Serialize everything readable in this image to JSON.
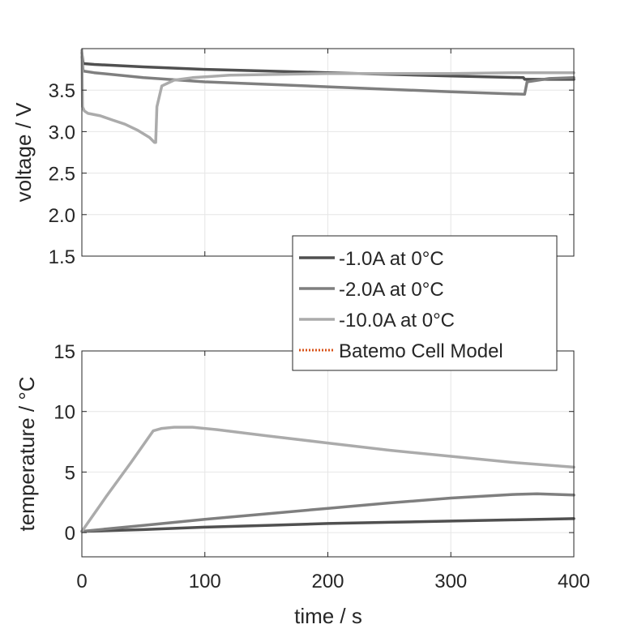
{
  "chart_data": [
    {
      "type": "line",
      "panel": "top",
      "title": "",
      "xlabel": "",
      "ylabel": "voltage / V",
      "xlim": [
        0,
        400
      ],
      "ylim": [
        1.5,
        4.0
      ],
      "xticks": [
        0,
        100,
        200,
        300,
        400
      ],
      "yticks": [
        1.5,
        2.0,
        2.5,
        3.0,
        3.5
      ],
      "ytick_labels": [
        "1.5",
        "2.0",
        "2.5",
        "3.0",
        "3.5"
      ],
      "show_x_tick_labels": false,
      "grid": true,
      "series": [
        {
          "name": "-1.0A at 0°C",
          "color": "#505050",
          "x": [
            0,
            1,
            10,
            50,
            100,
            150,
            200,
            250,
            300,
            359,
            360,
            380,
            400
          ],
          "y": [
            3.95,
            3.82,
            3.81,
            3.78,
            3.75,
            3.73,
            3.71,
            3.69,
            3.67,
            3.65,
            3.63,
            3.63,
            3.63
          ]
        },
        {
          "name": "-2.0A at 0°C",
          "color": "#7f7f7f",
          "x": [
            0,
            1,
            10,
            50,
            100,
            150,
            200,
            250,
            300,
            359,
            360,
            362,
            380,
            400
          ],
          "y": [
            3.9,
            3.73,
            3.71,
            3.65,
            3.6,
            3.57,
            3.54,
            3.51,
            3.48,
            3.45,
            3.45,
            3.6,
            3.64,
            3.65
          ]
        },
        {
          "name": "-10.0A at 0°C",
          "color": "#ababab",
          "x": [
            0,
            0.5,
            2,
            5,
            15,
            25,
            35,
            45,
            55,
            59,
            60,
            61,
            65,
            75,
            90,
            120,
            160,
            200,
            250,
            300,
            350,
            400
          ],
          "y": [
            3.98,
            3.3,
            3.25,
            3.22,
            3.19,
            3.14,
            3.09,
            3.02,
            2.93,
            2.87,
            2.87,
            3.3,
            3.55,
            3.62,
            3.65,
            3.68,
            3.69,
            3.7,
            3.7,
            3.7,
            3.71,
            3.71
          ]
        }
      ]
    },
    {
      "type": "line",
      "panel": "bottom",
      "title": "",
      "xlabel": "time / s",
      "ylabel": "temperature / °C",
      "xlim": [
        0,
        400
      ],
      "ylim": [
        -2,
        15
      ],
      "xticks": [
        0,
        100,
        200,
        300,
        400
      ],
      "yticks": [
        0,
        5,
        10,
        15
      ],
      "xtick_labels": [
        "0",
        "100",
        "200",
        "300",
        "400"
      ],
      "ytick_labels": [
        "0",
        "5",
        "10",
        "15"
      ],
      "grid": true,
      "series": [
        {
          "name": "-1.0A at 0°C",
          "color": "#505050",
          "x": [
            0,
            50,
            100,
            150,
            200,
            250,
            300,
            350,
            400
          ],
          "y": [
            0.1,
            0.25,
            0.45,
            0.6,
            0.75,
            0.85,
            0.95,
            1.05,
            1.15
          ]
        },
        {
          "name": "-2.0A at 0°C",
          "color": "#7f7f7f",
          "x": [
            0,
            50,
            100,
            150,
            200,
            250,
            300,
            350,
            370,
            400
          ],
          "y": [
            0.1,
            0.6,
            1.1,
            1.55,
            2.0,
            2.45,
            2.85,
            3.15,
            3.2,
            3.1
          ]
        },
        {
          "name": "-10.0A at 0°C",
          "color": "#ababab",
          "x": [
            0,
            20,
            40,
            58,
            65,
            75,
            90,
            110,
            150,
            200,
            250,
            300,
            350,
            400
          ],
          "y": [
            0.1,
            3.0,
            5.8,
            8.4,
            8.6,
            8.7,
            8.7,
            8.5,
            8.0,
            7.4,
            6.8,
            6.3,
            5.8,
            5.4
          ]
        }
      ]
    }
  ],
  "legend": {
    "placement": "center-right",
    "entries": [
      {
        "label": "-1.0A at 0°C",
        "color": "#505050",
        "style": "solid"
      },
      {
        "label": "-2.0A at 0°C",
        "color": "#7f7f7f",
        "style": "solid"
      },
      {
        "label": "-10.0A at 0°C",
        "color": "#ababab",
        "style": "solid"
      },
      {
        "label": "Batemo Cell Model",
        "color": "#d95319",
        "style": "dotted"
      }
    ]
  }
}
